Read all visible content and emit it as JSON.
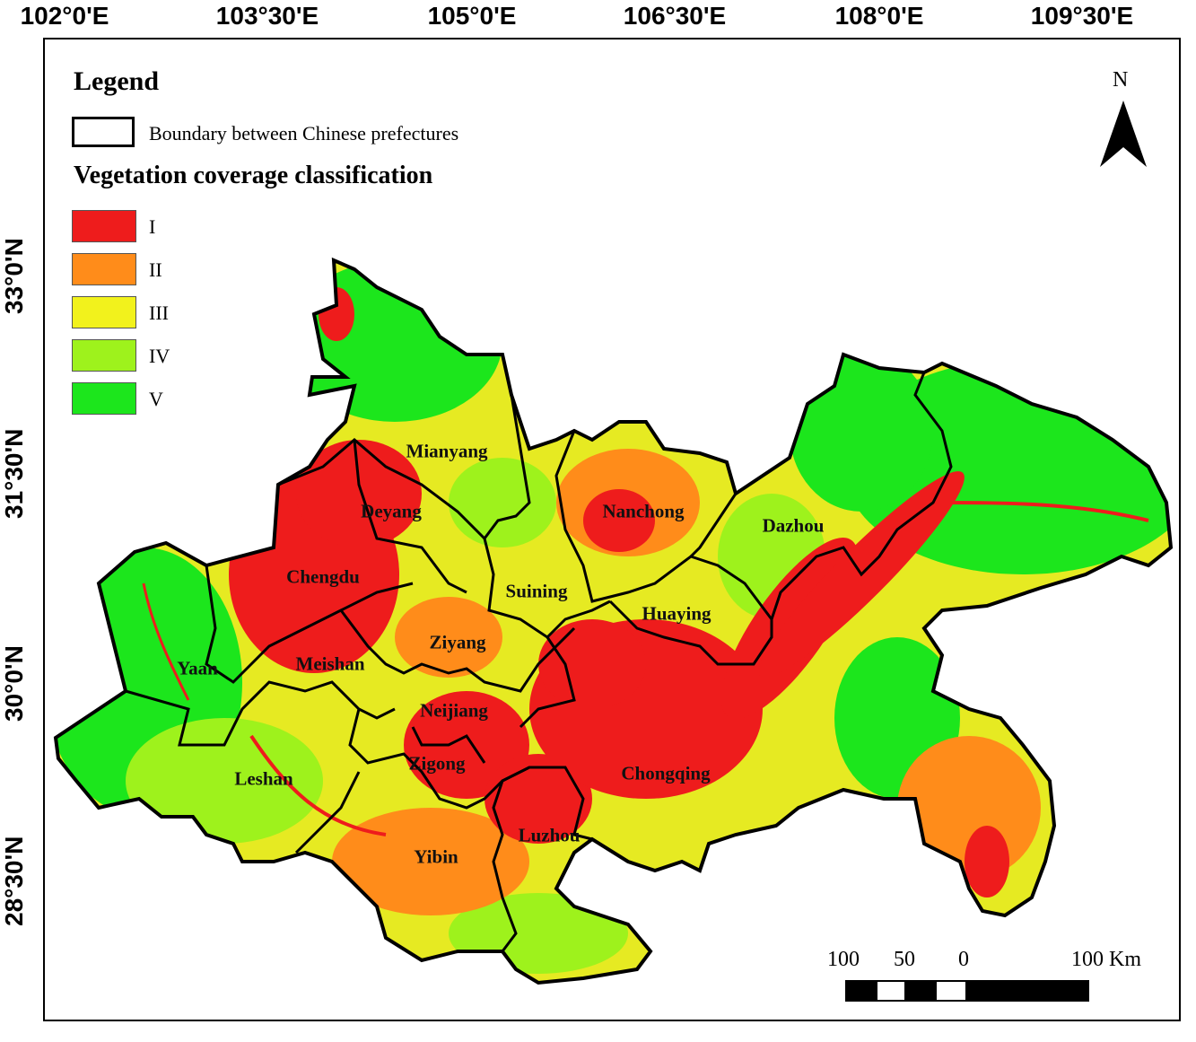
{
  "axes": {
    "longitude_ticks": [
      "102°0'E",
      "103°30'E",
      "105°0'E",
      "106°30'E",
      "108°0'E",
      "109°30'E"
    ],
    "latitude_ticks": [
      "33°0'N",
      "31°30'N",
      "30°0'N",
      "28°30'N"
    ]
  },
  "legend": {
    "title": "Legend",
    "boundary_label": "Boundary between Chinese prefectures",
    "classification_title": "Vegetation coverage classification",
    "classes": [
      {
        "label": "I",
        "color": "#ee1c1c"
      },
      {
        "label": "II",
        "color": "#ff8c1a"
      },
      {
        "label": "III",
        "color": "#f2f21c"
      },
      {
        "label": "IV",
        "color": "#9ef21c"
      },
      {
        "label": "V",
        "color": "#1ce61c"
      }
    ]
  },
  "north_arrow": {
    "label": "N"
  },
  "scale_bar": {
    "labels": [
      "100",
      "50",
      "0",
      "100 Km"
    ]
  },
  "prefectures": [
    "Mianyang",
    "Deyang",
    "Nanchong",
    "Dazhou",
    "Chengdu",
    "Suining",
    "Huaying",
    "Ziyang",
    "Yaan",
    "Meishan",
    "Neijiang",
    "Zigong",
    "Chongqing",
    "Leshan",
    "Luzhou",
    "Yibin"
  ]
}
